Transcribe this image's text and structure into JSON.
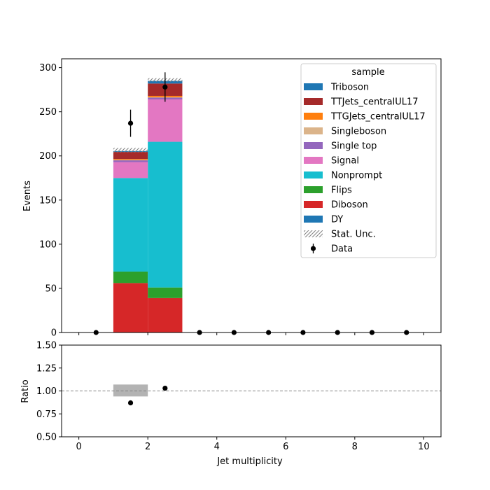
{
  "chart_data": [
    {
      "type": "bar",
      "subtype": "stacked-histogram",
      "xlabel": "",
      "ylabel": "Events",
      "xlim": [
        -0.5,
        10.5
      ],
      "ylim": [
        0,
        310
      ],
      "yticks": [
        0,
        50,
        100,
        150,
        200,
        250,
        300
      ],
      "bin_edges": [
        0,
        1,
        2,
        3,
        4,
        5,
        6,
        7,
        8,
        9,
        10
      ],
      "grid": false,
      "legend": {
        "title": "sample",
        "placement": "top-right",
        "entries": [
          "Triboson",
          "TTJets_centralUL17",
          "TTGJets_centralUL17",
          "Singleboson",
          "Single top",
          "Signal",
          "Nonprompt",
          "Flips",
          "Diboson",
          "DY",
          "Stat. Unc.",
          "Data"
        ]
      },
      "series": [
        {
          "name": "DY",
          "color": "#1f77b4",
          "values": [
            0,
            0,
            0,
            0,
            0,
            0,
            0,
            0,
            0,
            0
          ]
        },
        {
          "name": "Diboson",
          "color": "#d62728",
          "values": [
            0,
            56,
            39,
            0,
            0,
            0,
            0,
            0,
            0,
            0
          ]
        },
        {
          "name": "Flips",
          "color": "#2ca02c",
          "values": [
            0,
            13,
            12,
            0,
            0,
            0,
            0,
            0,
            0,
            0
          ]
        },
        {
          "name": "Nonprompt",
          "color": "#17becf",
          "values": [
            0,
            106,
            165,
            0,
            0,
            0,
            0,
            0,
            0,
            0
          ]
        },
        {
          "name": "Signal",
          "color": "#e377c2",
          "values": [
            0,
            18,
            48,
            0,
            0,
            0,
            0,
            0,
            0,
            0
          ]
        },
        {
          "name": "Single top",
          "color": "#9467bd",
          "values": [
            0,
            2,
            2,
            0,
            0,
            0,
            0,
            0,
            0,
            0
          ]
        },
        {
          "name": "Singleboson",
          "color": "#dbb48a",
          "values": [
            0,
            0.5,
            0.5,
            0,
            0,
            0,
            0,
            0,
            0,
            0
          ]
        },
        {
          "name": "TTGJets_centralUL17",
          "color": "#ff7f0e",
          "values": [
            0,
            1,
            1.5,
            0,
            0,
            0,
            0,
            0,
            0,
            0
          ]
        },
        {
          "name": "TTJets_centralUL17",
          "color": "#a52a2a",
          "values": [
            0,
            8,
            14,
            0,
            0,
            0,
            0,
            0,
            0,
            0
          ]
        },
        {
          "name": "Triboson",
          "color": "#1f77b4",
          "values": [
            0,
            1,
            3,
            0,
            0,
            0,
            0,
            0,
            0,
            0
          ]
        }
      ],
      "stat_unc": [
        {
          "bin": [
            1,
            2
          ],
          "low": 204,
          "high": 209
        },
        {
          "bin": [
            2,
            3
          ],
          "low": 284,
          "high": 288
        }
      ],
      "data": {
        "name": "Data",
        "x": [
          0.5,
          1.5,
          2.5,
          3.5,
          4.5,
          5.5,
          6.5,
          7.5,
          8.5,
          9.5
        ],
        "y": [
          0,
          237,
          278,
          0,
          0,
          0,
          0,
          0,
          0,
          0
        ],
        "yerr": [
          0,
          15.4,
          16.7,
          0,
          0,
          0,
          0,
          0,
          0,
          0
        ]
      }
    },
    {
      "type": "scatter",
      "subtype": "ratio",
      "xlabel": "Jet multiplicity",
      "ylabel": "Ratio",
      "xlim": [
        -0.5,
        10.5
      ],
      "ylim": [
        0.5,
        1.5
      ],
      "xticks": [
        0,
        2,
        4,
        6,
        8,
        10
      ],
      "yticks": [
        0.5,
        0.75,
        1.0,
        1.25,
        1.5
      ],
      "ytick_labels": [
        "0.50",
        "0.75",
        "1.00",
        "1.25",
        "1.50"
      ],
      "reference_line": 1.0,
      "unc_bands": [
        {
          "bin": [
            1,
            2
          ],
          "low": 0.94,
          "high": 1.07
        }
      ],
      "x": [
        1.5,
        2.5
      ],
      "y": [
        0.87,
        1.03
      ]
    }
  ]
}
